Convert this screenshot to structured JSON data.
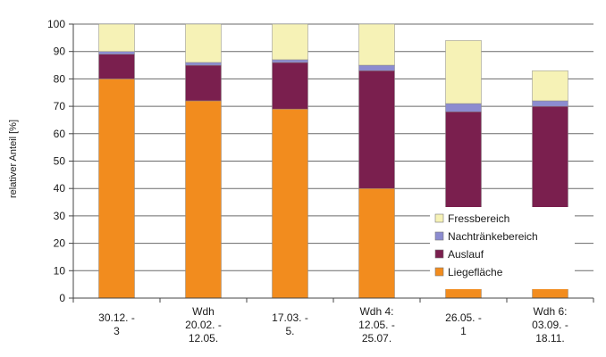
{
  "chart_data": {
    "type": "bar",
    "stacked": true,
    "ylabel": "relativer Anteil [%]",
    "ylim": [
      0,
      100
    ],
    "yticks": [
      0,
      10,
      20,
      30,
      40,
      50,
      60,
      70,
      80,
      90,
      100
    ],
    "grid": true,
    "legend_position": "bottom-right",
    "categories": [
      [
        "30.12. -",
        "3"
      ],
      [
        "Wdh",
        "20.02. -",
        "12.05."
      ],
      [
        "17.03. -",
        "5."
      ],
      [
        "Wdh 4:",
        "12.05. -",
        "25.07."
      ],
      [
        "26.05. -",
        "1"
      ],
      [
        "Wdh 6:",
        "03.09. -",
        "18.11."
      ]
    ],
    "series": [
      {
        "name": "Liegefläche",
        "color": "#f28c1e",
        "values": [
          80,
          72,
          69,
          40,
          5,
          5
        ]
      },
      {
        "name": "Auslauf",
        "color": "#7a1f4e",
        "values": [
          9,
          13,
          17,
          43,
          36,
          38
        ]
      },
      {
        "name": "Nachtränkebereich",
        "color": "#8c8cd0",
        "values": [
          1,
          1,
          1,
          2,
          3,
          2
        ]
      },
      {
        "name": "Fressbereich",
        "color": "#f6f2b6",
        "values": [
          10,
          14,
          13,
          15,
          23,
          11
        ]
      }
    ],
    "gaps": [
      {
        "category_index": 4,
        "from": 5,
        "to": 32
      },
      {
        "category_index": 5,
        "from": 5,
        "to": 32
      }
    ]
  }
}
